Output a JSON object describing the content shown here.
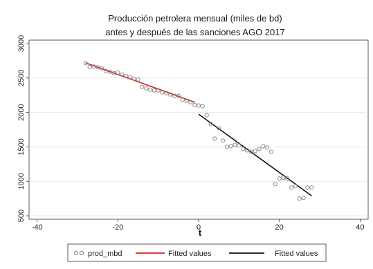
{
  "chart_data": {
    "type": "scatter",
    "title_line1": "Producción petrolera mensual (miles de bd)",
    "title_line2": "antes y después de las sanciones AGO 2017",
    "xlabel": "t",
    "ylabel": "",
    "xlim": [
      -42,
      42
    ],
    "ylim": [
      450,
      3050
    ],
    "xticks": [
      -40,
      -20,
      0,
      20,
      40
    ],
    "yticks": [
      500,
      1000,
      1500,
      2000,
      2500,
      3000
    ],
    "grid": "horizontal",
    "legend_position": "bottom",
    "series": [
      {
        "name": "prod_mbd",
        "kind": "scatter",
        "marker": "hollow-circle",
        "color": "#808080",
        "points": [
          [
            -28,
            2715
          ],
          [
            -27,
            2660
          ],
          [
            -26,
            2665
          ],
          [
            -25,
            2655
          ],
          [
            -24,
            2640
          ],
          [
            -23,
            2600
          ],
          [
            -22,
            2590
          ],
          [
            -21,
            2570
          ],
          [
            -20,
            2580
          ],
          [
            -19,
            2550
          ],
          [
            -18,
            2530
          ],
          [
            -17,
            2510
          ],
          [
            -16,
            2490
          ],
          [
            -15,
            2480
          ],
          [
            -14,
            2370
          ],
          [
            -13,
            2350
          ],
          [
            -12,
            2330
          ],
          [
            -11,
            2320
          ],
          [
            -10,
            2320
          ],
          [
            -9,
            2290
          ],
          [
            -8,
            2280
          ],
          [
            -7,
            2260
          ],
          [
            -6,
            2240
          ],
          [
            -5,
            2240
          ],
          [
            -4,
            2185
          ],
          [
            -3,
            2170
          ],
          [
            -2,
            2150
          ],
          [
            -1,
            2110
          ],
          [
            0,
            2100
          ],
          [
            1,
            2090
          ],
          [
            2,
            1960
          ],
          [
            3,
            1830
          ],
          [
            4,
            1620
          ],
          [
            5,
            1770
          ],
          [
            6,
            1590
          ],
          [
            7,
            1500
          ],
          [
            8,
            1510
          ],
          [
            9,
            1530
          ],
          [
            10,
            1520
          ],
          [
            11,
            1470
          ],
          [
            12,
            1450
          ],
          [
            13,
            1430
          ],
          [
            14,
            1440
          ],
          [
            15,
            1470
          ],
          [
            16,
            1510
          ],
          [
            17,
            1490
          ],
          [
            18,
            1430
          ],
          [
            19,
            960
          ],
          [
            20,
            1040
          ],
          [
            21,
            1050
          ],
          [
            22,
            1040
          ],
          [
            23,
            910
          ],
          [
            24,
            930
          ],
          [
            25,
            750
          ],
          [
            26,
            760
          ],
          [
            27,
            910
          ],
          [
            28,
            910
          ]
        ]
      },
      {
        "name": "Fitted values",
        "kind": "line",
        "color": "#d62020",
        "x": [
          -28,
          -1
        ],
        "y": [
          2720,
          2150
        ]
      },
      {
        "name": "Fitted values",
        "kind": "line",
        "color": "#111111",
        "x": [
          0,
          28
        ],
        "y": [
          1975,
          790
        ]
      }
    ]
  }
}
